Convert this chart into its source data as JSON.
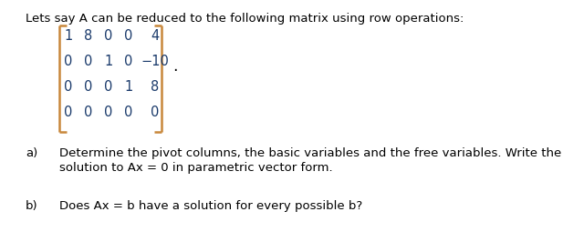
{
  "bg_color": "#ffffff",
  "text_color": "#000000",
  "matrix_num_color": "#1a3a6b",
  "bracket_color": "#c8873a",
  "dot_color": "#000000",
  "intro_text": "Lets say A can be reduced to the following matrix using row operations:",
  "matrix_rows": [
    [
      "1",
      "8",
      "0",
      "0",
      "4"
    ],
    [
      "0",
      "0",
      "1",
      "0",
      "−10"
    ],
    [
      "0",
      "0",
      "0",
      "1",
      "8"
    ],
    [
      "0",
      "0",
      "0",
      "0",
      "0"
    ]
  ],
  "part_a_label": "a)",
  "part_a_text1": "Determine the pivot columns, the basic variables and the free variables. Write the",
  "part_a_text2": "solution to Ax = 0 in parametric vector form.",
  "part_b_label": "b)",
  "part_b_text": "Does Ax = b have a solution for every possible b?",
  "intro_fontsize": 9.5,
  "matrix_fontsize": 10.5,
  "body_fontsize": 9.5,
  "figsize": [
    6.17,
    2.77
  ],
  "dpi": 100
}
